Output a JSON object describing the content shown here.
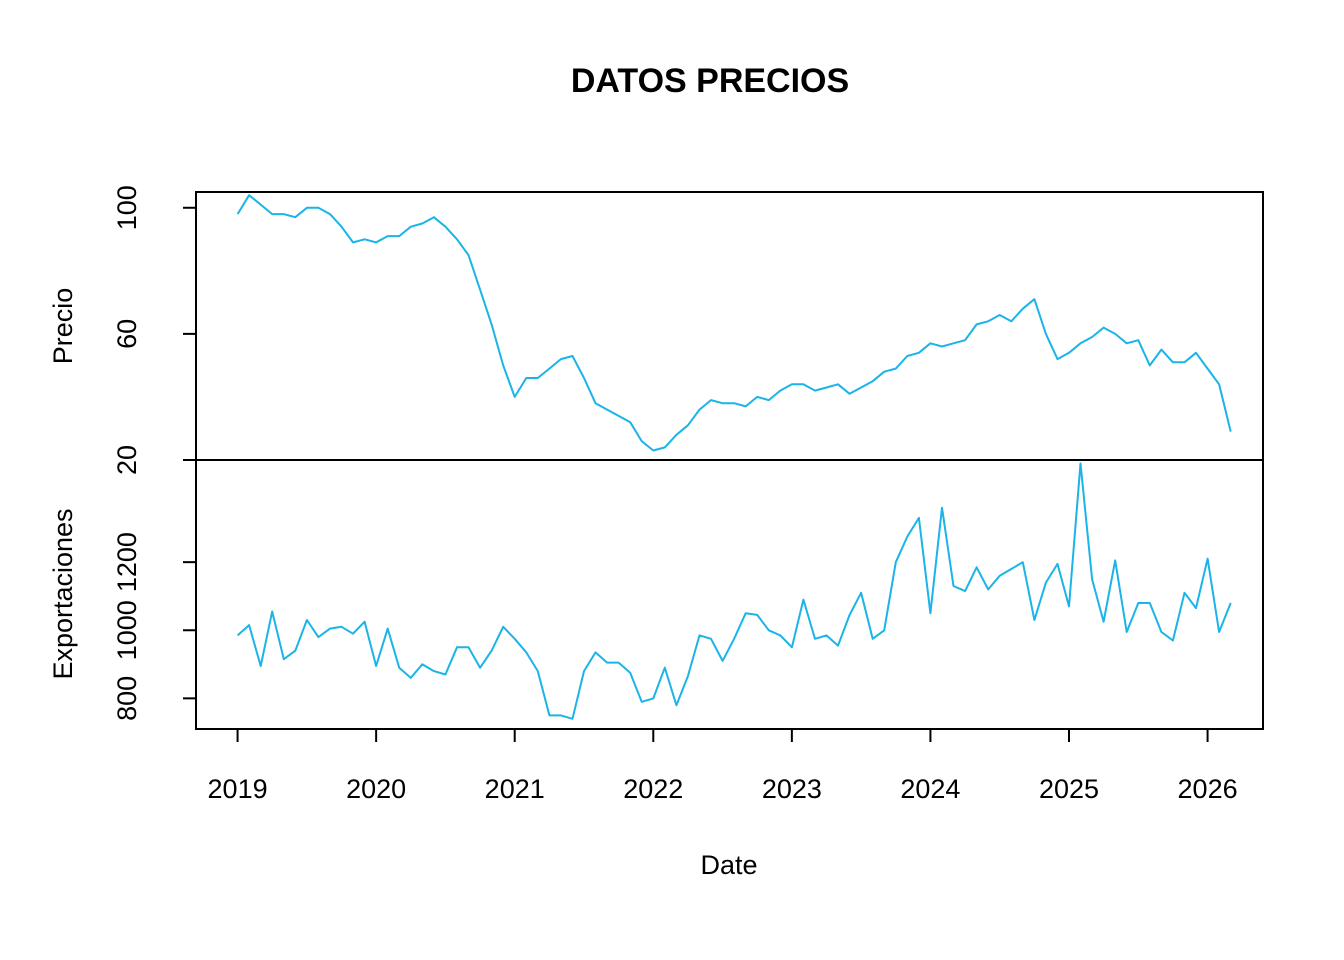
{
  "chart_data": {
    "type": "line",
    "title": "DATOS PRECIOS",
    "xlabel": "Date",
    "line_color": "#1AB4E8",
    "x_ticks": [
      "2019",
      "2020",
      "2021",
      "2022",
      "2023",
      "2024",
      "2025",
      "2026"
    ],
    "x_start": 2019.0,
    "x_step": 0.0833333,
    "xlim": [
      2018.7,
      2026.4
    ],
    "panels": [
      {
        "ylabel": "Precio",
        "ylim": [
          20,
          105
        ],
        "y_ticks": [
          20,
          60,
          100
        ],
        "series": [
          {
            "values": [
              98,
              104,
              101,
              98,
              98,
              97,
              100,
              100,
              98,
              94,
              89,
              90,
              89,
              91,
              91,
              94,
              95,
              97,
              94,
              90,
              85,
              74,
              63,
              50,
              40,
              46,
              46,
              49,
              52,
              53,
              46,
              38,
              36,
              34,
              32,
              26,
              23,
              24,
              28,
              31,
              36,
              39,
              38,
              38,
              37,
              40,
              39,
              42,
              44,
              44,
              42,
              43,
              44,
              41,
              43,
              45,
              48,
              49,
              53,
              54,
              57,
              56,
              57,
              58,
              63,
              64,
              66,
              64,
              68,
              71,
              60,
              52,
              54,
              57,
              59,
              62,
              60,
              57,
              58,
              50,
              55,
              51,
              51,
              54,
              49,
              44,
              29
            ]
          }
        ]
      },
      {
        "ylabel": "Exportaciones",
        "ylim": [
          710,
          1500
        ],
        "y_ticks": [
          800,
          1000,
          1200
        ],
        "series": [
          {
            "values": [
              985,
              1015,
              895,
              1055,
              915,
              940,
              1030,
              980,
              1005,
              1010,
              990,
              1025,
              895,
              1005,
              890,
              860,
              900,
              880,
              870,
              950,
              950,
              890,
              940,
              1010,
              975,
              935,
              880,
              750,
              750,
              740,
              880,
              935,
              905,
              905,
              875,
              790,
              800,
              890,
              780,
              865,
              985,
              975,
              910,
              975,
              1050,
              1045,
              1000,
              985,
              950,
              1090,
              975,
              985,
              955,
              1045,
              1110,
              975,
              1000,
              1200,
              1275,
              1330,
              1050,
              1360,
              1130,
              1115,
              1185,
              1120,
              1160,
              1180,
              1200,
              1030,
              1140,
              1195,
              1070,
              1490,
              1150,
              1025,
              1205,
              995,
              1080,
              1080,
              995,
              970,
              1110,
              1065,
              1210,
              995,
              1080
            ]
          }
        ]
      }
    ]
  }
}
